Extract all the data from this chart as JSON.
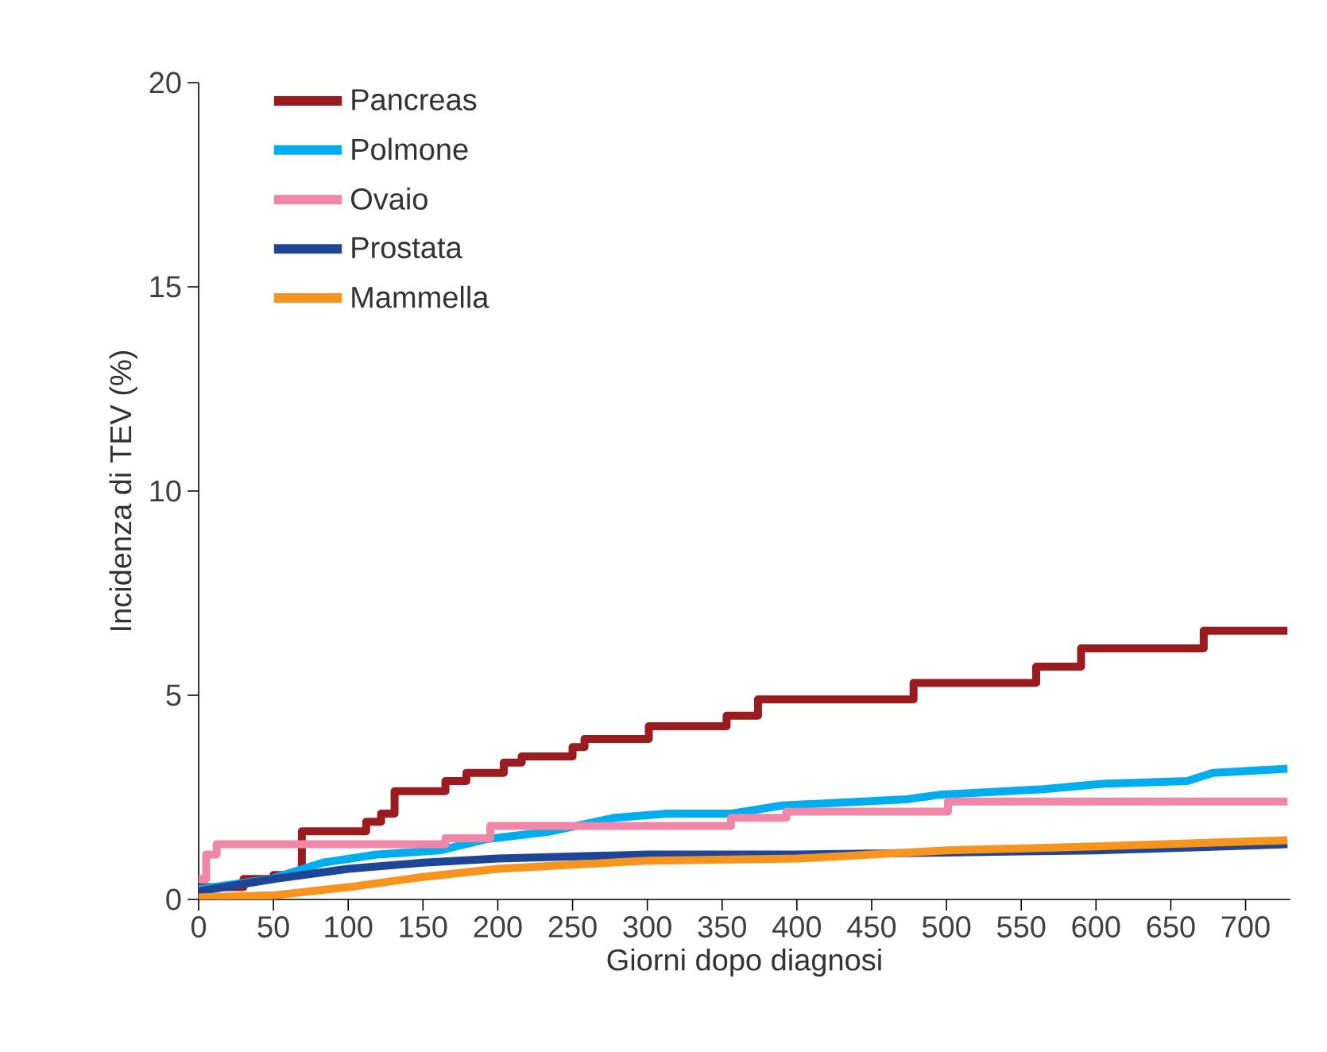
{
  "chart_data": {
    "type": "line",
    "xlabel": "Giorni dopo diagnosi",
    "ylabel": "Incidenza di TEV (%)",
    "xlim": [
      0,
      730
    ],
    "xticks": [
      0,
      50,
      100,
      150,
      200,
      250,
      300,
      350,
      400,
      450,
      500,
      550,
      600,
      650,
      700
    ],
    "ylim": [
      0,
      20
    ],
    "yticks": [
      0,
      5,
      10,
      15,
      20
    ],
    "legend": "top left",
    "grid": false,
    "marker": "none",
    "line_style": "solid",
    "series": [
      {
        "name": "Pancreas",
        "type": "step",
        "color": "#9b1b1f",
        "x": [
          0,
          30,
          50,
          69,
          112,
          122,
          131,
          165,
          179,
          204,
          216,
          250,
          258,
          301,
          353,
          374,
          478,
          560,
          590,
          672,
          728
        ],
        "values": [
          0.3,
          0.5,
          0.6,
          1.67,
          1.9,
          2.1,
          2.65,
          2.9,
          3.1,
          3.35,
          3.5,
          3.73,
          3.93,
          4.24,
          4.5,
          4.9,
          5.3,
          5.7,
          6.15,
          6.58,
          6.58
        ]
      },
      {
        "name": "Polmone",
        "color": "#00aeef",
        "x": [
          0,
          48,
          83,
          119,
          161,
          193,
          236,
          278,
          313,
          356,
          390,
          473,
          497,
          565,
          604,
          661,
          678,
          728
        ],
        "values": [
          0.25,
          0.5,
          0.9,
          1.1,
          1.2,
          1.48,
          1.67,
          2.0,
          2.1,
          2.1,
          2.3,
          2.45,
          2.57,
          2.7,
          2.83,
          2.9,
          3.1,
          3.2
        ]
      },
      {
        "name": "Ovaio",
        "type": "step",
        "color": "#f087a8",
        "x": [
          0,
          5,
          12,
          165,
          195,
          356,
          393,
          501,
          728
        ],
        "values": [
          0.5,
          1.1,
          1.35,
          1.5,
          1.8,
          2.0,
          2.15,
          2.4,
          2.4
        ]
      },
      {
        "name": "Prostata",
        "color": "#1f4596",
        "x": [
          0,
          50,
          100,
          150,
          200,
          250,
          300,
          400,
          500,
          600,
          728
        ],
        "values": [
          0.2,
          0.5,
          0.75,
          0.9,
          1.0,
          1.05,
          1.1,
          1.1,
          1.15,
          1.2,
          1.35
        ]
      },
      {
        "name": "Mammella",
        "color": "#f7941d",
        "x": [
          0,
          50,
          100,
          150,
          200,
          250,
          300,
          400,
          500,
          600,
          728
        ],
        "values": [
          0.05,
          0.1,
          0.3,
          0.55,
          0.75,
          0.85,
          0.95,
          1.0,
          1.2,
          1.3,
          1.45
        ]
      }
    ]
  }
}
